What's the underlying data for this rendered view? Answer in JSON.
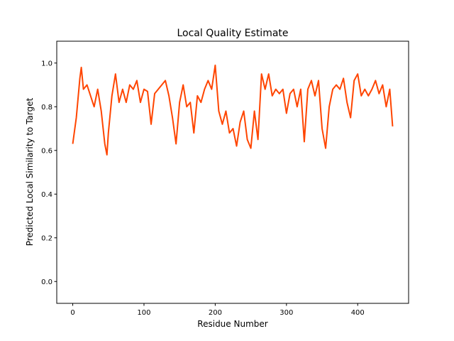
{
  "chart_data": {
    "type": "line",
    "title": "Local Quality Estimate",
    "xlabel": "Residue Number",
    "ylabel": "Predicted Local Similarity to Target",
    "xlim": [
      -22.45,
      471.45
    ],
    "ylim": [
      -0.1,
      1.1
    ],
    "xticks": [
      0,
      100,
      200,
      300,
      400
    ],
    "yticks": [
      {
        "value": 0,
        "label": "0.0"
      },
      {
        "value": 0.2,
        "label": "0.2"
      },
      {
        "value": 0.4,
        "label": "0.4"
      },
      {
        "value": 0.6,
        "label": "0.6"
      },
      {
        "value": 0.8,
        "label": "0.8"
      },
      {
        "value": 1,
        "label": "1.0"
      }
    ],
    "series": [
      {
        "color": "#ff4500",
        "x": [
          0,
          5,
          10,
          12,
          15,
          20,
          25,
          30,
          35,
          40,
          45,
          48,
          50,
          55,
          60,
          65,
          70,
          75,
          80,
          85,
          90,
          95,
          100,
          105,
          110,
          115,
          120,
          125,
          130,
          135,
          140,
          145,
          150,
          155,
          160,
          165,
          170,
          175,
          180,
          185,
          190,
          195,
          200,
          205,
          210,
          215,
          220,
          225,
          230,
          235,
          240,
          245,
          250,
          255,
          260,
          265,
          270,
          275,
          280,
          285,
          290,
          295,
          300,
          305,
          310,
          315,
          320,
          325,
          330,
          335,
          340,
          345,
          350,
          355,
          360,
          365,
          370,
          375,
          380,
          385,
          390,
          395,
          400,
          405,
          410,
          415,
          420,
          425,
          430,
          435,
          440,
          445,
          449
        ],
        "values": [
          0.63,
          0.75,
          0.93,
          0.98,
          0.88,
          0.9,
          0.85,
          0.8,
          0.88,
          0.78,
          0.63,
          0.58,
          0.68,
          0.85,
          0.95,
          0.82,
          0.88,
          0.82,
          0.9,
          0.88,
          0.92,
          0.82,
          0.88,
          0.87,
          0.72,
          0.86,
          0.88,
          0.9,
          0.92,
          0.85,
          0.75,
          0.63,
          0.82,
          0.9,
          0.8,
          0.82,
          0.68,
          0.85,
          0.82,
          0.88,
          0.92,
          0.88,
          0.99,
          0.78,
          0.72,
          0.78,
          0.68,
          0.7,
          0.62,
          0.73,
          0.78,
          0.65,
          0.61,
          0.78,
          0.65,
          0.95,
          0.88,
          0.95,
          0.85,
          0.88,
          0.86,
          0.88,
          0.77,
          0.86,
          0.88,
          0.8,
          0.88,
          0.64,
          0.88,
          0.92,
          0.85,
          0.92,
          0.7,
          0.61,
          0.8,
          0.88,
          0.9,
          0.88,
          0.93,
          0.82,
          0.75,
          0.92,
          0.95,
          0.85,
          0.88,
          0.85,
          0.88,
          0.92,
          0.86,
          0.9,
          0.8,
          0.88,
          0.71
        ]
      }
    ]
  }
}
